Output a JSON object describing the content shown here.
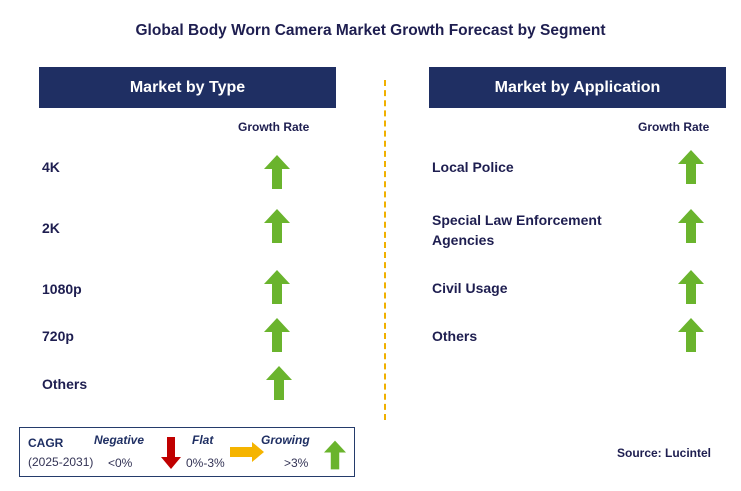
{
  "title": "Global Body Worn Camera Market Growth Forecast by Segment",
  "left_panel": {
    "header": "Market by Type",
    "column_header": "Growth Rate",
    "rows": [
      {
        "label": "4K",
        "trend": "growing"
      },
      {
        "label": "2K",
        "trend": "growing"
      },
      {
        "label": "1080p",
        "trend": "growing"
      },
      {
        "label": "720p",
        "trend": "growing"
      },
      {
        "label": "Others",
        "trend": "growing"
      }
    ]
  },
  "right_panel": {
    "header": "Market by Application",
    "column_header": "Growth Rate",
    "rows": [
      {
        "label": "Local Police",
        "trend": "growing"
      },
      {
        "label": "Special Law Enforcement Agencies",
        "trend": "growing"
      },
      {
        "label": "Civil Usage",
        "trend": "growing"
      },
      {
        "label": "Others",
        "trend": "growing"
      }
    ]
  },
  "legend": {
    "cagr_label": "CAGR",
    "period": "(2025-2031)",
    "negative_label": "Negative",
    "negative_range": "<0%",
    "flat_label": "Flat",
    "flat_range": "0%-3%",
    "growing_label": "Growing",
    "growing_range": ">3%"
  },
  "source": "Source: Lucintel",
  "colors": {
    "header_bg": "#1f2f63",
    "growing_arrow": "#6ab42d",
    "negative_arrow": "#c00000",
    "flat_arrow": "#f5b400",
    "divider": "#f0b000"
  },
  "icons": {
    "growing": "up-arrow-icon",
    "negative": "down-arrow-icon",
    "flat": "right-arrow-icon"
  }
}
